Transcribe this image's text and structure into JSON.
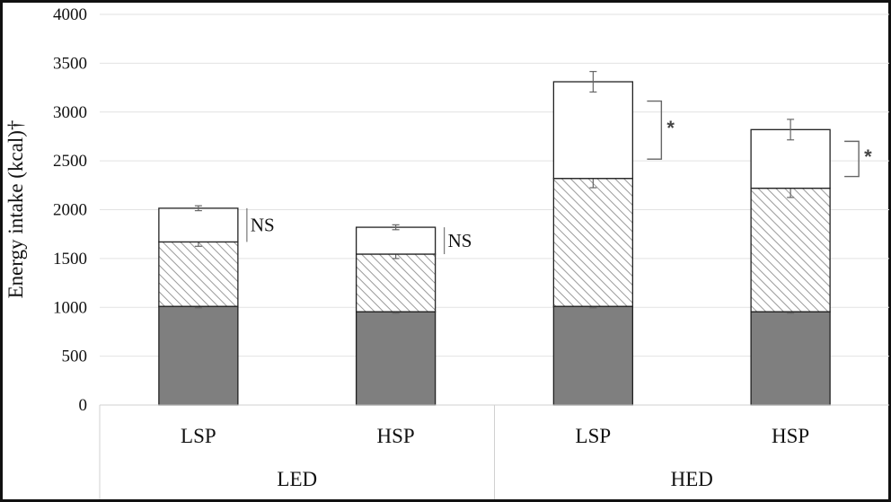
{
  "chart_data": {
    "type": "bar",
    "stacked": true,
    "ylabel": "Energy intake (kcal)†",
    "ylim": [
      0,
      4000
    ],
    "yticks": [
      0,
      500,
      1000,
      1500,
      2000,
      2500,
      3000,
      3500,
      4000
    ],
    "grid": true,
    "categories": [
      "LSP",
      "HSP",
      "LSP",
      "HSP"
    ],
    "groups": [
      {
        "label": "LED",
        "categories": [
          0,
          1
        ]
      },
      {
        "label": "HED",
        "categories": [
          2,
          3
        ]
      }
    ],
    "series": [
      {
        "fill": "#7f7f7f",
        "pattern": "solid",
        "values": [
          1010,
          955,
          1010,
          955
        ],
        "errors": [
          15,
          15,
          15,
          15
        ]
      },
      {
        "fill": "#ffffff",
        "pattern": "hatch",
        "values": [
          660,
          590,
          1310,
          1265
        ],
        "errors": [
          45,
          45,
          95,
          95
        ]
      },
      {
        "fill": "#ffffff",
        "pattern": "none",
        "values": [
          345,
          275,
          990,
          600
        ],
        "errors": [
          25,
          25,
          105,
          105
        ]
      }
    ],
    "annotations": [
      {
        "category": 0,
        "label": "NS",
        "bracket": "line"
      },
      {
        "category": 1,
        "label": "NS",
        "bracket": "line"
      },
      {
        "category": 2,
        "label": "*",
        "bracket": "bracket"
      },
      {
        "category": 3,
        "label": "*",
        "bracket": "bracket"
      }
    ]
  }
}
